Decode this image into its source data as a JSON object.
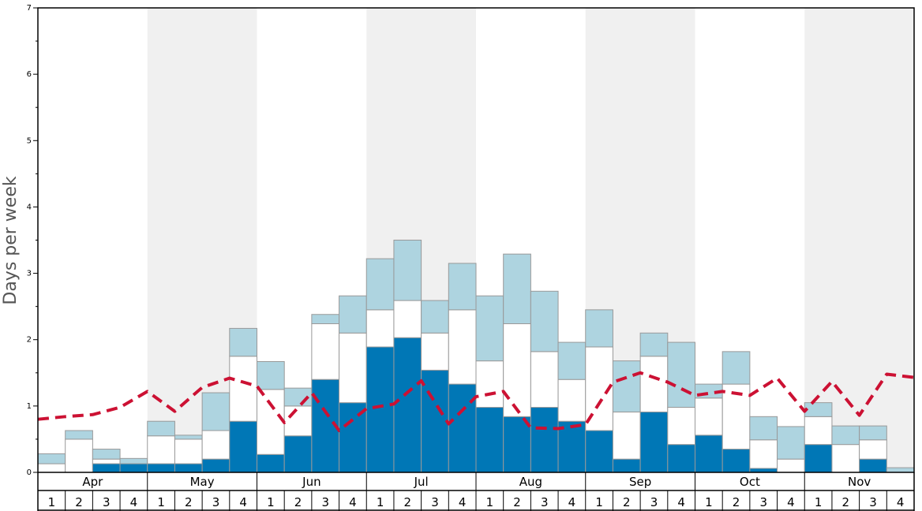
{
  "chart_data": {
    "type": "bar",
    "ylabel": "Days per week",
    "ylim": [
      0,
      7
    ],
    "yticks": [
      "0",
      "1",
      "2",
      "3",
      "4",
      "5",
      "6",
      "7"
    ],
    "months": [
      "Apr",
      "May",
      "Jun",
      "Jul",
      "Aug",
      "Sep",
      "Oct",
      "Nov"
    ],
    "week_labels": [
      "1",
      "2",
      "3",
      "4"
    ],
    "colors": {
      "dark": "#0077b6",
      "white": "#ffffff",
      "light": "#aed4e0",
      "line": "#cc1133",
      "shade": "#f0f0f0",
      "bar_edge": "#999999"
    },
    "series": [
      {
        "values": [
          0,
          0,
          0.13,
          0.13,
          0.13,
          0.13,
          0.2,
          0.77,
          0.27,
          0.55,
          1.4,
          1.05,
          1.89,
          2.03,
          1.54,
          1.33,
          0.98,
          0.84,
          0.98,
          0.77,
          0.63,
          0.2,
          0.91,
          0.42,
          0.56,
          0.35,
          0.06,
          0,
          0.42,
          0,
          0.2,
          0
        ]
      },
      {
        "values": [
          0.13,
          0.5,
          0.07,
          0,
          0.42,
          0.37,
          0.43,
          0.98,
          0.98,
          0.45,
          0.84,
          1.05,
          0.56,
          0.56,
          0.56,
          1.12,
          0.7,
          1.4,
          0.84,
          0.63,
          1.26,
          0.71,
          0.84,
          0.56,
          0.56,
          0.98,
          0.43,
          0.2,
          0.42,
          0.42,
          0.29,
          0
        ]
      },
      {
        "values": [
          0.15,
          0.13,
          0.15,
          0.08,
          0.22,
          0.06,
          0.57,
          0.42,
          0.42,
          0.27,
          0.14,
          0.56,
          0.77,
          0.91,
          0.49,
          0.7,
          0.98,
          1.05,
          0.91,
          0.56,
          0.56,
          0.77,
          0.35,
          0.98,
          0.21,
          0.49,
          0.35,
          0.49,
          0.21,
          0.28,
          0.21,
          0.07
        ]
      },
      {
        "type": "line",
        "values": [
          0.8,
          0.84,
          0.87,
          0.98,
          1.22,
          0.92,
          1.28,
          1.42,
          1.3,
          0.75,
          1.2,
          0.63,
          0.96,
          1.03,
          1.38,
          0.73,
          1.14,
          1.22,
          0.67,
          0.66,
          0.72,
          1.36,
          1.5,
          1.36,
          1.16,
          1.22,
          1.16,
          1.42,
          0.92,
          1.37,
          0.86,
          1.48,
          1.43
        ]
      }
    ]
  }
}
